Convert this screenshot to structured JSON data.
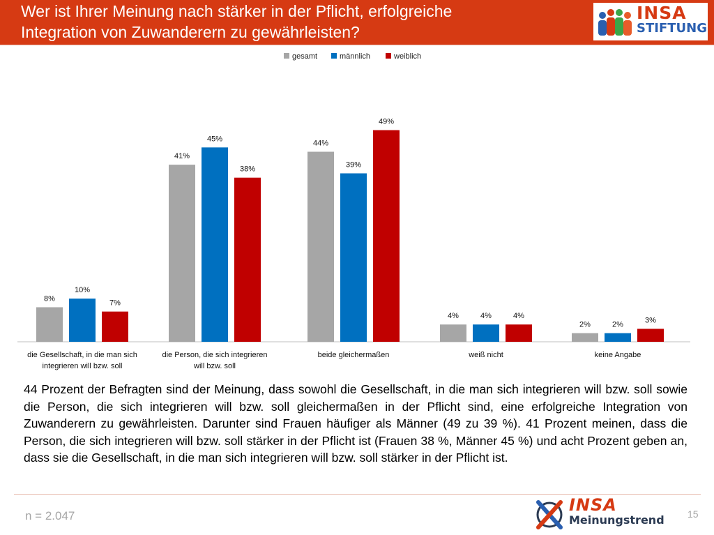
{
  "header": {
    "title_line1": "Wer ist Ihrer Meinung nach stärker in der Pflicht, erfolgreiche",
    "title_line2": "Integration von Zuwanderern zu gewährleisten?",
    "logo_top": "INSA",
    "logo_bottom": "STIFTUNG",
    "bg_color": "#d63a13"
  },
  "chart_data": {
    "type": "bar",
    "categories": [
      [
        "die Gesellschaft, in die man sich",
        "integrieren will bzw. soll"
      ],
      [
        "die Person, die sich integrieren",
        "will bzw. soll"
      ],
      [
        "beide gleichermaßen"
      ],
      [
        "weiß nicht"
      ],
      [
        "keine Angabe"
      ]
    ],
    "series": [
      {
        "name": "gesamt",
        "color": "#a6a6a6",
        "values": [
          8,
          41,
          44,
          4,
          2
        ],
        "labels": [
          "8%",
          "41%",
          "44%",
          "4%",
          "2%"
        ]
      },
      {
        "name": "männlich",
        "color": "#0070c0",
        "values": [
          10,
          45,
          39,
          4,
          2
        ],
        "labels": [
          "10%",
          "45%",
          "39%",
          "4%",
          "2%"
        ]
      },
      {
        "name": "weiblich",
        "color": "#c00000",
        "values": [
          7,
          38,
          49,
          4,
          3
        ],
        "labels": [
          "7%",
          "38%",
          "49%",
          "4%",
          "3%"
        ]
      }
    ],
    "ylim": [
      0,
      52
    ],
    "grid": false,
    "legend_position": "top-center"
  },
  "body_text": "44 Prozent der Befragten sind der Meinung, dass sowohl die Gesellschaft, in die man sich integrieren will bzw. soll sowie die Person, die sich integrieren will bzw. soll gleichermaßen in der Pflicht sind, eine erfolgreiche Integration von Zuwanderern zu gewährleisten. Darunter sind Frauen häufiger als Männer (49 zu 39 %). 41 Prozent meinen, dass die Person, die sich integrieren will bzw. soll stärker in der Pflicht ist (Frauen 38 %, Männer 45 %) und acht Prozent geben an, dass sie die Gesellschaft, in die man sich integrieren will bzw. soll stärker in der Pflicht ist.",
  "footer": {
    "sample": "n = 2.047",
    "page_number": "15",
    "logo_top": "INSA",
    "logo_bottom": "Meinungstrend"
  }
}
